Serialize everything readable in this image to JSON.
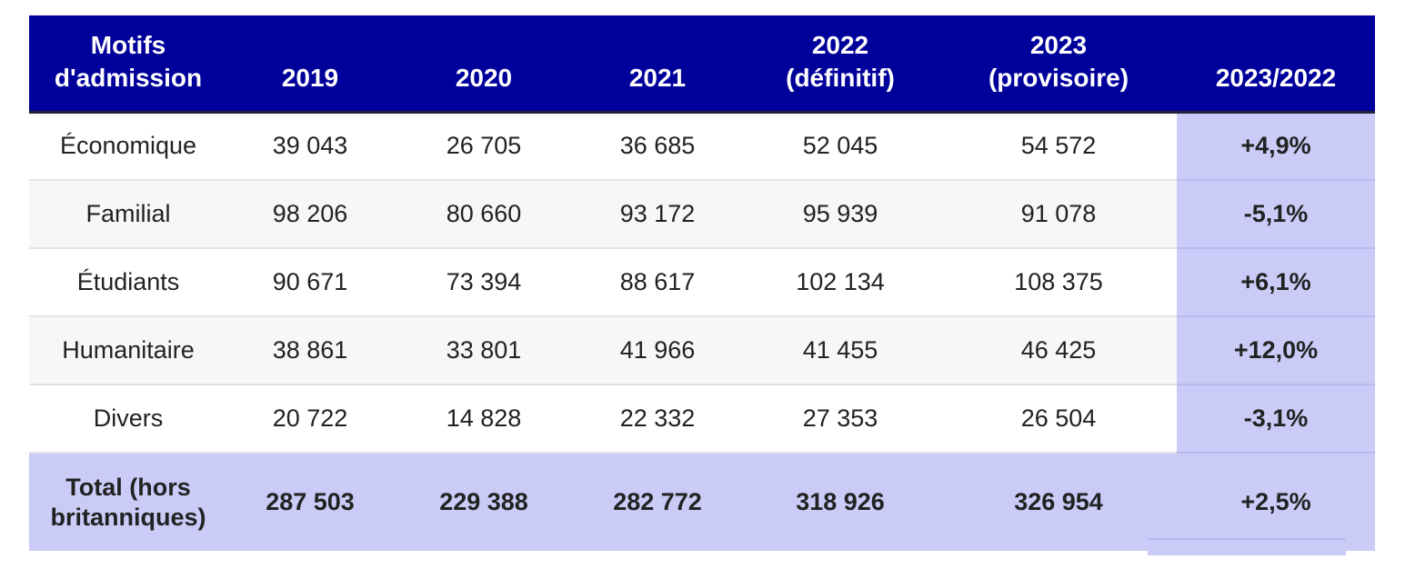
{
  "table": {
    "headers": [
      "Motifs d'admission",
      "2019",
      "2020",
      "2021",
      "2022 (définitif)",
      "2023 (provisoire)",
      "2023/2022"
    ],
    "header_lines": [
      [
        "Motifs",
        "d'admission"
      ],
      [
        "2019"
      ],
      [
        "2020"
      ],
      [
        "2021"
      ],
      [
        "2022",
        "(définitif)"
      ],
      [
        "2023",
        "(provisoire)"
      ],
      [
        "2023/2022"
      ]
    ],
    "rows": [
      [
        "Économique",
        "39 043",
        "26 705",
        "36 685",
        "52 045",
        "54 572",
        "+4,9%"
      ],
      [
        "Familial",
        "98 206",
        "80 660",
        "93 172",
        "95 939",
        "91 078",
        "-5,1%"
      ],
      [
        "Étudiants",
        "90 671",
        "73 394",
        "88 617",
        "102 134",
        "108 375",
        "+6,1%"
      ],
      [
        "Humanitaire",
        "38 861",
        "33 801",
        "41 966",
        "41 455",
        "46 425",
        "+12,0%"
      ],
      [
        "Divers",
        "20 722",
        "14 828",
        "22 332",
        "27 353",
        "26 504",
        "-3,1%"
      ]
    ],
    "total": {
      "label_lines": [
        "Total (hors",
        "britanniques)"
      ],
      "values": [
        "287 503",
        "229 388",
        "282 772",
        "318 926",
        "326 954",
        "+2,5%"
      ]
    }
  },
  "colors": {
    "header_bg": "#00009b",
    "header_text": "#ffffff",
    "highlight": "#cbcbf8",
    "alt_row": "#f7f7f7"
  }
}
